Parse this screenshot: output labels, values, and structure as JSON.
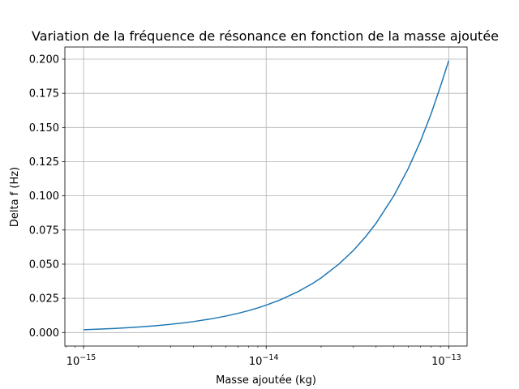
{
  "chart_data": {
    "type": "line",
    "title": "Variation de la fréquence de résonance en fonction de la masse ajoutée",
    "xlabel": "Masse ajoutée (kg)",
    "ylabel": "Delta f (Hz)",
    "xscale": "log",
    "xlim": [
      7.9e-16,
      1.26e-13
    ],
    "ylim": [
      -0.0099,
      0.2089
    ],
    "grid": true,
    "x_ticks": [
      1e-15,
      1e-14,
      1e-13
    ],
    "x_tick_labels": [
      {
        "base": "10",
        "exp": "−15"
      },
      {
        "base": "10",
        "exp": "−14"
      },
      {
        "base": "10",
        "exp": "−13"
      }
    ],
    "y_ticks": [
      0.0,
      0.025,
      0.05,
      0.075,
      0.1,
      0.125,
      0.15,
      0.175,
      0.2
    ],
    "y_tick_labels": [
      "0.000",
      "0.025",
      "0.050",
      "0.075",
      "0.100",
      "0.125",
      "0.150",
      "0.175",
      "0.200"
    ],
    "series": [
      {
        "color": "#1f77b4",
        "x": [
          1e-15,
          1.5e-15,
          2e-15,
          2.5e-15,
          3e-15,
          3.5e-15,
          4e-15,
          5e-15,
          6e-15,
          7e-15,
          8e-15,
          9e-15,
          1e-14,
          1.2e-14,
          1.5e-14,
          1.8e-14,
          2e-14,
          2.5e-14,
          3e-14,
          3.5e-14,
          4e-14,
          5e-14,
          6e-14,
          7e-14,
          8e-14,
          9e-14,
          1e-13
        ],
        "y": [
          0.002,
          0.003,
          0.004,
          0.005,
          0.006,
          0.007,
          0.008,
          0.01,
          0.012,
          0.014,
          0.016,
          0.018,
          0.02,
          0.024,
          0.03,
          0.036,
          0.04,
          0.05,
          0.06,
          0.07,
          0.08,
          0.1,
          0.12,
          0.14,
          0.16,
          0.18,
          0.199
        ]
      }
    ]
  }
}
